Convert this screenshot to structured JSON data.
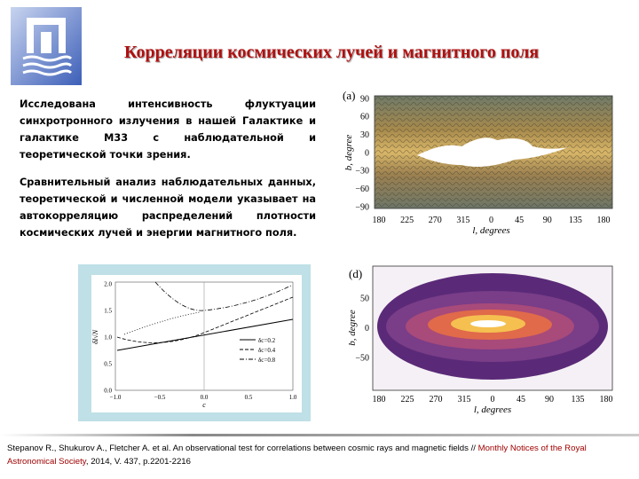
{
  "title": "Корреляции космических лучей и магнитного поля",
  "paragraphs": [
    "Исследована интенсивность флуктуации синхротронного излучения в нашей Галактике и галактике М33 с наблюдательной и теоретической точки зрения.",
    "Сравнительный анализ наблюдательных данных, теоретической и численной модели указывает на автокорреляцию распределений плотности космических лучей и энергии магнитного поля."
  ],
  "figure_a": {
    "label": "(a)",
    "y_label": "b, degree",
    "x_label": "l, degrees",
    "yticks": [
      "90",
      "60",
      "30",
      "0",
      "−30",
      "−60",
      "−90"
    ],
    "xticks": [
      "180",
      "225",
      "270",
      "315",
      "0",
      "45",
      "90",
      "135",
      "180"
    ]
  },
  "figure_d": {
    "label": "(d)",
    "y_label": "b, degree",
    "x_label": "l, degrees",
    "yticks": [
      "50",
      "0",
      "−50"
    ],
    "xticks": [
      "180",
      "225",
      "270",
      "315",
      "0",
      "45",
      "90",
      "135",
      "180"
    ]
  },
  "figure_c": {
    "y_label": "δI√N",
    "x_label": "c",
    "yticks": [
      "2.0",
      "1.5",
      "1.0",
      "0.5",
      "0.0"
    ],
    "xticks": [
      "−1.0",
      "−0.5",
      "0.0",
      "0.5",
      "1.0"
    ],
    "legend": [
      "δc=0.2",
      "δc=0.4",
      "δc=0.8"
    ]
  },
  "reference": {
    "authors": "Stepanov R., Shukurov A., Fletcher A. et al. An observational test for correlations between cosmic rays and magnetic fields // ",
    "journal": "Monthly Notices of the Royal Astronomical Society",
    "details": ", 2014, V. 437, p.2201-2216"
  }
}
